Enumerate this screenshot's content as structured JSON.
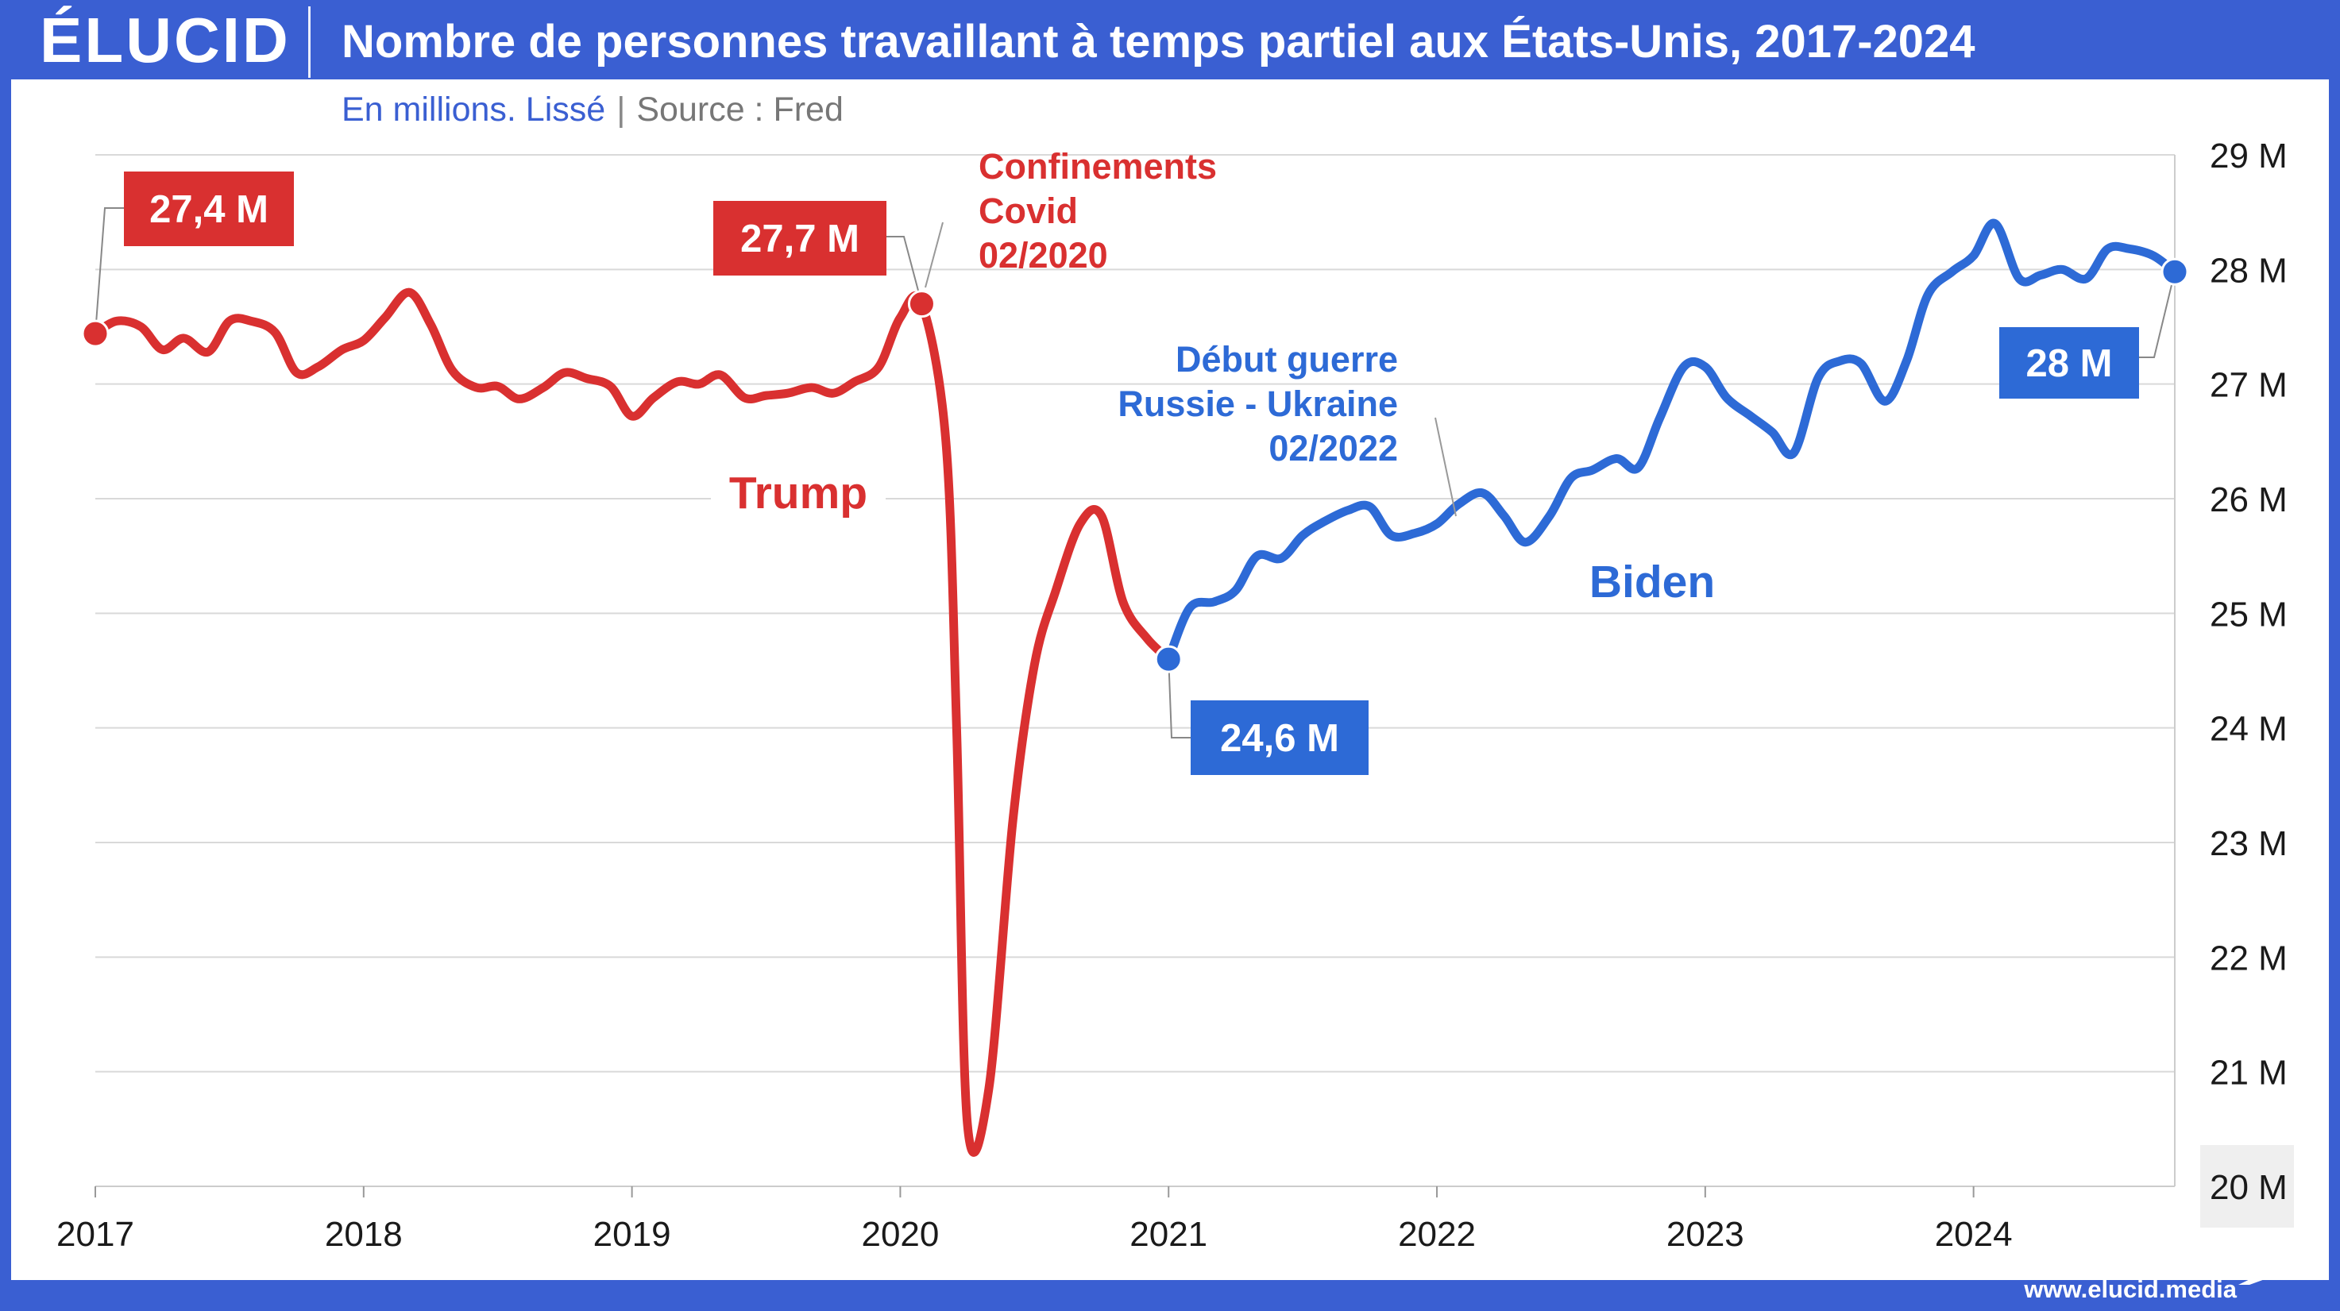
{
  "brand": {
    "logo": "ÉLUCID",
    "url": "www.elucid.media"
  },
  "header": {
    "title": "Nombre de personnes travaillant à temps partiel aux États-Unis, 2017-2024",
    "subtitle_unit": "En millions. Lissé",
    "subtitle_sep": "|",
    "subtitle_source": "Source : Fred"
  },
  "colors": {
    "background": "#3a5fd2",
    "trump": "#d93030",
    "biden": "#2d6ad6",
    "grid": "#d9d9d9"
  },
  "chart_data": {
    "type": "line",
    "title": "Nombre de personnes travaillant à temps partiel aux États-Unis, 2017-2024",
    "ylabel": "",
    "xlabel": "",
    "y_axis_position": "right",
    "ylim": [
      20,
      29
    ],
    "xlim": [
      2017,
      2024.75
    ],
    "grid": "horizontal",
    "y_ticks": [
      {
        "value": 20,
        "label": "20 M"
      },
      {
        "value": 21,
        "label": "21 M"
      },
      {
        "value": 22,
        "label": "22 M"
      },
      {
        "value": 23,
        "label": "23 M"
      },
      {
        "value": 24,
        "label": "24 M"
      },
      {
        "value": 25,
        "label": "25 M"
      },
      {
        "value": 26,
        "label": "26 M"
      },
      {
        "value": 27,
        "label": "27 M"
      },
      {
        "value": 28,
        "label": "28 M"
      },
      {
        "value": 29,
        "label": "29 M"
      }
    ],
    "x_ticks": [
      {
        "value": 2017,
        "label": "2017"
      },
      {
        "value": 2018,
        "label": "2018"
      },
      {
        "value": 2019,
        "label": "2019"
      },
      {
        "value": 2020,
        "label": "2020"
      },
      {
        "value": 2021,
        "label": "2021"
      },
      {
        "value": 2022,
        "label": "2022"
      },
      {
        "value": 2023,
        "label": "2023"
      },
      {
        "value": 2024,
        "label": "2024"
      }
    ],
    "series": [
      {
        "name": "Trump",
        "color": "#d93030",
        "points": [
          [
            2017.0,
            27.44
          ],
          [
            2017.08,
            27.55
          ],
          [
            2017.17,
            27.5
          ],
          [
            2017.25,
            27.3
          ],
          [
            2017.33,
            27.4
          ],
          [
            2017.42,
            27.28
          ],
          [
            2017.5,
            27.55
          ],
          [
            2017.58,
            27.55
          ],
          [
            2017.67,
            27.45
          ],
          [
            2017.75,
            27.1
          ],
          [
            2017.83,
            27.15
          ],
          [
            2017.92,
            27.3
          ],
          [
            2018.0,
            27.38
          ],
          [
            2018.08,
            27.58
          ],
          [
            2018.17,
            27.8
          ],
          [
            2018.25,
            27.52
          ],
          [
            2018.33,
            27.12
          ],
          [
            2018.42,
            26.97
          ],
          [
            2018.5,
            26.98
          ],
          [
            2018.58,
            26.87
          ],
          [
            2018.67,
            26.97
          ],
          [
            2018.75,
            27.1
          ],
          [
            2018.83,
            27.05
          ],
          [
            2018.92,
            26.98
          ],
          [
            2019.0,
            26.72
          ],
          [
            2019.08,
            26.88
          ],
          [
            2019.17,
            27.02
          ],
          [
            2019.25,
            27.0
          ],
          [
            2019.33,
            27.08
          ],
          [
            2019.42,
            26.88
          ],
          [
            2019.5,
            26.9
          ],
          [
            2019.58,
            26.92
          ],
          [
            2019.67,
            26.97
          ],
          [
            2019.75,
            26.92
          ],
          [
            2019.83,
            27.02
          ],
          [
            2019.92,
            27.15
          ],
          [
            2020.0,
            27.58
          ],
          [
            2020.08,
            27.7
          ],
          [
            2020.17,
            26.5
          ],
          [
            2020.21,
            24.0
          ],
          [
            2020.25,
            20.55
          ],
          [
            2020.33,
            20.85
          ],
          [
            2020.42,
            23.2
          ],
          [
            2020.5,
            24.55
          ],
          [
            2020.58,
            25.2
          ],
          [
            2020.67,
            25.78
          ],
          [
            2020.75,
            25.85
          ],
          [
            2020.83,
            25.1
          ],
          [
            2020.92,
            24.78
          ],
          [
            2021.0,
            24.6
          ]
        ]
      },
      {
        "name": "Biden",
        "color": "#2d6ad6",
        "points": [
          [
            2021.0,
            24.6
          ],
          [
            2021.08,
            25.05
          ],
          [
            2021.17,
            25.1
          ],
          [
            2021.25,
            25.2
          ],
          [
            2021.33,
            25.5
          ],
          [
            2021.42,
            25.48
          ],
          [
            2021.5,
            25.68
          ],
          [
            2021.58,
            25.8
          ],
          [
            2021.67,
            25.9
          ],
          [
            2021.75,
            25.93
          ],
          [
            2021.83,
            25.68
          ],
          [
            2021.92,
            25.7
          ],
          [
            2022.0,
            25.78
          ],
          [
            2022.08,
            25.95
          ],
          [
            2022.17,
            26.05
          ],
          [
            2022.25,
            25.85
          ],
          [
            2022.33,
            25.62
          ],
          [
            2022.42,
            25.85
          ],
          [
            2022.5,
            26.18
          ],
          [
            2022.58,
            26.25
          ],
          [
            2022.67,
            26.35
          ],
          [
            2022.75,
            26.27
          ],
          [
            2022.83,
            26.7
          ],
          [
            2022.92,
            27.15
          ],
          [
            2023.0,
            27.15
          ],
          [
            2023.08,
            26.88
          ],
          [
            2023.17,
            26.72
          ],
          [
            2023.25,
            26.58
          ],
          [
            2023.33,
            26.4
          ],
          [
            2023.42,
            27.05
          ],
          [
            2023.5,
            27.2
          ],
          [
            2023.58,
            27.18
          ],
          [
            2023.67,
            26.85
          ],
          [
            2023.75,
            27.2
          ],
          [
            2023.83,
            27.78
          ],
          [
            2023.92,
            27.98
          ],
          [
            2024.0,
            28.12
          ],
          [
            2024.08,
            28.4
          ],
          [
            2024.17,
            27.92
          ],
          [
            2024.25,
            27.95
          ],
          [
            2024.33,
            28.0
          ],
          [
            2024.42,
            27.92
          ],
          [
            2024.5,
            28.18
          ],
          [
            2024.58,
            28.18
          ],
          [
            2024.67,
            28.12
          ],
          [
            2024.75,
            27.98
          ]
        ]
      }
    ],
    "value_labels": [
      {
        "text": "27,4 M",
        "series": "Trump",
        "x": 2017.0,
        "y": 27.44
      },
      {
        "text": "27,7 M",
        "series": "Trump",
        "x": 2020.08,
        "y": 27.7
      },
      {
        "text": "24,6 M",
        "series": "Biden",
        "x": 2021.0,
        "y": 24.6
      },
      {
        "text": "28 M",
        "series": "Biden",
        "x": 2024.75,
        "y": 27.98
      }
    ],
    "annotations": [
      {
        "lines": [
          "Confinements",
          "Covid",
          "02/2020"
        ],
        "series": "Trump",
        "x": 2020.08,
        "y": 27.7
      },
      {
        "lines": [
          "Début guerre",
          "Russie - Ukraine",
          "02/2022"
        ],
        "series": "Biden",
        "x": 2022.08,
        "y": 25.9
      }
    ],
    "period_labels": [
      {
        "text": "Trump",
        "series": "Trump"
      },
      {
        "text": "Biden",
        "series": "Biden"
      }
    ]
  }
}
